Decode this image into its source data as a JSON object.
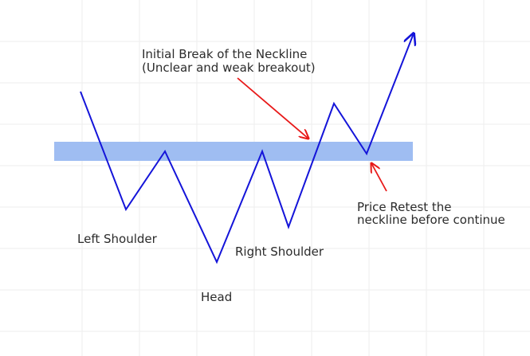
{
  "annotations": {
    "breakout_line1": "Initial Break of the Neckline",
    "breakout_line2": "(Unclear and weak breakout)",
    "retest_line1": "Price Retest the",
    "retest_line2": "neckline before continue"
  },
  "pattern_labels": {
    "left_shoulder": "Left Shoulder",
    "head": "Head",
    "right_shoulder": "Right Shoulder"
  },
  "colors": {
    "price_line": "#1414d9",
    "neckline_zone": "#9fbdf2",
    "arrow": "#e81919",
    "grid": "#eeeeee",
    "text": "#2b2b2b"
  }
}
